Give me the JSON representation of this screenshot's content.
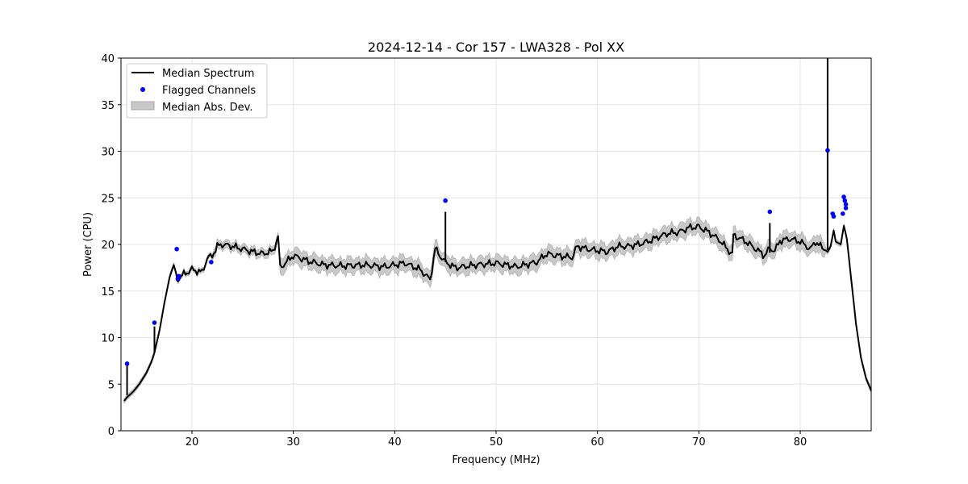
{
  "chart_data": {
    "type": "line",
    "title": "2024-12-14 - Cor 157 - LWA328 - Pol XX",
    "xlabel": "Frequency (MHz)",
    "ylabel": "Power (CPU)",
    "xlim": [
      13.0,
      87.0
    ],
    "ylim": [
      0,
      40
    ],
    "xticks": [
      20,
      30,
      40,
      50,
      60,
      70,
      80
    ],
    "yticks": [
      0,
      5,
      10,
      15,
      20,
      25,
      30,
      35,
      40
    ],
    "grid": true,
    "legend_position": "upper-left",
    "legend": [
      "Median Spectrum",
      "Flagged Channels",
      "Median Abs. Dev."
    ],
    "colors": {
      "median": "#000000",
      "flagged": "#0000ff",
      "mad": "#b0b0b0"
    },
    "series": [
      {
        "name": "Median Spectrum",
        "x": [
          13.3,
          13.6,
          13.8,
          14.2,
          14.8,
          15.5,
          16.0,
          16.3,
          16.8,
          17.3,
          17.8,
          18.2,
          18.6,
          19.2,
          20.0,
          21.0,
          21.5,
          22.0,
          22.5,
          23.0,
          24.0,
          25.0,
          26.0,
          27.0,
          28.0,
          28.5,
          28.7,
          30.0,
          31.5,
          33.0,
          35.0,
          37.0,
          39.0,
          41.0,
          42.5,
          43.5,
          44.0,
          44.3,
          45.0,
          46.0,
          48.0,
          50.0,
          52.0,
          54.0,
          55.0,
          56.0,
          57.5,
          58.0,
          59.0,
          61.0,
          62.0,
          63.0,
          64.0,
          65.0,
          66.0,
          67.0,
          68.0,
          69.0,
          70.0,
          71.0,
          72.0,
          73.3,
          73.4,
          74.5,
          75.5,
          76.5,
          77.0,
          77.5,
          78.0,
          79.0,
          80.0,
          81.0,
          81.5,
          82.0,
          82.7,
          83.0,
          83.3,
          83.5,
          84.0,
          84.3,
          84.6,
          85.0,
          85.5,
          86.0,
          86.5,
          87.0
        ],
        "y": [
          3.2,
          3.6,
          3.8,
          4.2,
          5.0,
          6.2,
          7.4,
          8.4,
          10.8,
          13.8,
          16.5,
          17.8,
          16.3,
          16.8,
          17.3,
          17.0,
          18.5,
          18.8,
          19.8,
          20.0,
          19.8,
          19.5,
          19.2,
          19.0,
          19.3,
          20.8,
          17.5,
          18.8,
          18.2,
          17.8,
          17.7,
          17.8,
          17.6,
          18.0,
          17.3,
          16.2,
          19.6,
          19.0,
          18.1,
          17.5,
          17.8,
          18.0,
          17.6,
          18.1,
          19.0,
          18.8,
          18.6,
          19.8,
          19.5,
          19.2,
          19.8,
          19.8,
          20.0,
          20.3,
          20.8,
          21.2,
          21.3,
          21.8,
          21.9,
          21.3,
          20.5,
          18.9,
          21.0,
          20.4,
          19.6,
          18.8,
          19.6,
          19.3,
          20.4,
          20.6,
          20.3,
          19.5,
          20.3,
          19.8,
          19.2,
          19.8,
          21.5,
          20.3,
          20.0,
          22.0,
          20.6,
          16.5,
          11.5,
          7.8,
          5.6,
          4.3
        ]
      },
      {
        "name": "Flagged Channels",
        "x": [
          13.6,
          16.3,
          18.5,
          18.6,
          18.7,
          21.9,
          45.0,
          77.0,
          82.7,
          83.2,
          83.3,
          84.2,
          84.3,
          84.4,
          84.5,
          84.5
        ],
        "y": [
          7.2,
          11.6,
          19.5,
          16.3,
          16.6,
          18.1,
          24.7,
          23.5,
          30.1,
          23.3,
          23.0,
          23.3,
          25.1,
          24.7,
          24.3,
          23.9
        ]
      }
    ],
    "spikes": [
      {
        "x": 13.6,
        "top": 7.0,
        "base": 3.8
      },
      {
        "x": 16.3,
        "top": 11.2,
        "base": 8.4
      },
      {
        "x": 45.0,
        "top": 23.5,
        "base": 18.1
      },
      {
        "x": 77.0,
        "top": 22.3,
        "base": 19.1
      },
      {
        "x": 82.7,
        "top": 40.0,
        "base": 19.4
      }
    ]
  }
}
